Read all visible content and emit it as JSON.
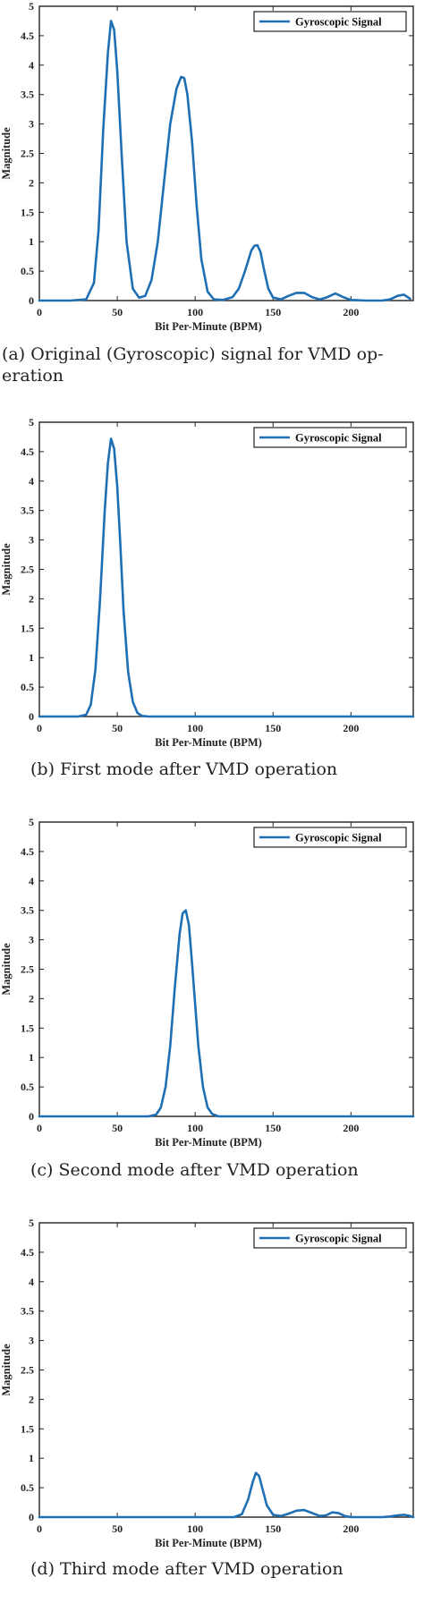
{
  "chart_data": [
    {
      "type": "line",
      "caption": "(a) Original (Gyroscopic) signal for VMD op-\neration",
      "xlabel": "Bit Per-Minute (BPM)",
      "ylabel": "Magnitude",
      "xlim": [
        0,
        240
      ],
      "ylim": [
        0,
        5
      ],
      "xticks": [
        "0",
        "50",
        "100",
        "150",
        "200"
      ],
      "yticks": [
        "0",
        "0.5",
        "1",
        "1.5",
        "2",
        "2.5",
        "3",
        "3.5",
        "4",
        "4.5",
        "5"
      ],
      "legend": "top-right",
      "color": "#1f6fb4",
      "series": [
        {
          "name": "Gyroscopic Signal",
          "x": [
            0,
            20,
            30,
            35,
            38,
            41,
            44,
            46,
            48,
            50,
            53,
            56,
            60,
            64,
            68,
            72,
            76,
            80,
            84,
            88,
            91,
            93,
            95,
            98,
            101,
            104,
            108,
            112,
            118,
            124,
            128,
            132,
            136,
            138,
            140,
            142,
            144,
            147,
            150,
            155,
            160,
            165,
            170,
            175,
            180,
            185,
            190,
            195,
            200,
            210,
            220,
            225,
            230,
            234,
            238
          ],
          "y": [
            0,
            0,
            0.02,
            0.3,
            1.2,
            2.9,
            4.2,
            4.75,
            4.6,
            3.9,
            2.4,
            1.0,
            0.2,
            0.05,
            0.08,
            0.35,
            1.0,
            2.0,
            3.0,
            3.6,
            3.8,
            3.78,
            3.5,
            2.7,
            1.6,
            0.7,
            0.15,
            0.02,
            0.01,
            0.06,
            0.2,
            0.5,
            0.85,
            0.93,
            0.94,
            0.82,
            0.55,
            0.2,
            0.05,
            0.02,
            0.08,
            0.13,
            0.13,
            0.06,
            0.02,
            0.06,
            0.12,
            0.06,
            0.01,
            0,
            0,
            0.02,
            0.08,
            0.1,
            0.03
          ]
        }
      ]
    },
    {
      "type": "line",
      "caption": "(b) First mode after VMD operation",
      "xlabel": "Bit Per-Minute (BPM)",
      "ylabel": "Magnitude",
      "xlim": [
        0,
        240
      ],
      "ylim": [
        0,
        5
      ],
      "xticks": [
        "0",
        "50",
        "100",
        "150",
        "200"
      ],
      "yticks": [
        "0",
        "0.5",
        "1",
        "1.5",
        "2",
        "2.5",
        "3",
        "3.5",
        "4",
        "4.5",
        "5"
      ],
      "legend": "top-right",
      "color": "#1f6fb4",
      "series": [
        {
          "name": "Gyroscopic Signal",
          "x": [
            0,
            25,
            30,
            33,
            36,
            39,
            42,
            44,
            46,
            48,
            50,
            52,
            54,
            57,
            60,
            63,
            66,
            70,
            80,
            120,
            160,
            200,
            240
          ],
          "y": [
            0,
            0,
            0.03,
            0.2,
            0.8,
            2.0,
            3.5,
            4.3,
            4.72,
            4.55,
            3.9,
            2.9,
            1.8,
            0.75,
            0.25,
            0.06,
            0.01,
            0,
            0,
            0,
            0,
            0,
            0
          ]
        }
      ]
    },
    {
      "type": "line",
      "caption": "(c) Second mode after VMD operation",
      "xlabel": "Bit Per-Minute (BPM)",
      "ylabel": "Magnitude",
      "xlim": [
        0,
        240
      ],
      "ylim": [
        0,
        5
      ],
      "xticks": [
        "0",
        "50",
        "100",
        "150",
        "200"
      ],
      "yticks": [
        "0",
        "0.5",
        "1",
        "1.5",
        "2",
        "2.5",
        "3",
        "3.5",
        "4",
        "4.5",
        "5"
      ],
      "legend": "top-right",
      "color": "#1f6fb4",
      "series": [
        {
          "name": "Gyroscopic Signal",
          "x": [
            0,
            40,
            70,
            75,
            78,
            81,
            84,
            87,
            90,
            92,
            94,
            96,
            98,
            100,
            102,
            105,
            108,
            111,
            115,
            120,
            160,
            200,
            240
          ],
          "y": [
            0,
            0,
            0,
            0.03,
            0.15,
            0.5,
            1.2,
            2.2,
            3.1,
            3.45,
            3.5,
            3.25,
            2.6,
            1.9,
            1.2,
            0.5,
            0.15,
            0.04,
            0,
            0,
            0,
            0,
            0
          ]
        }
      ]
    },
    {
      "type": "line",
      "caption": "(d) Third mode after VMD operation",
      "xlabel": "Bit Per-Minute (BPM)",
      "ylabel": "Magnitude",
      "xlim": [
        0,
        240
      ],
      "ylim": [
        0,
        5
      ],
      "xticks": [
        "0",
        "50",
        "100",
        "150",
        "200"
      ],
      "yticks": [
        "0",
        "0.5",
        "1",
        "1.5",
        "2",
        "2.5",
        "3",
        "3.5",
        "4",
        "4.5",
        "5"
      ],
      "legend": "top-right",
      "color": "#1f6fb4",
      "series": [
        {
          "name": "Gyroscopic Signal",
          "x": [
            0,
            50,
            100,
            125,
            130,
            134,
            137,
            139,
            141,
            143,
            146,
            150,
            155,
            160,
            165,
            170,
            175,
            180,
            184,
            188,
            192,
            196,
            200,
            210,
            220,
            225,
            230,
            234,
            238,
            240
          ],
          "y": [
            0,
            0,
            0,
            0,
            0.05,
            0.3,
            0.6,
            0.75,
            0.7,
            0.5,
            0.2,
            0.04,
            0.02,
            0.06,
            0.11,
            0.12,
            0.07,
            0.02,
            0.03,
            0.08,
            0.07,
            0.02,
            0,
            0,
            0,
            0.01,
            0.03,
            0.04,
            0.02,
            0
          ]
        }
      ]
    }
  ]
}
